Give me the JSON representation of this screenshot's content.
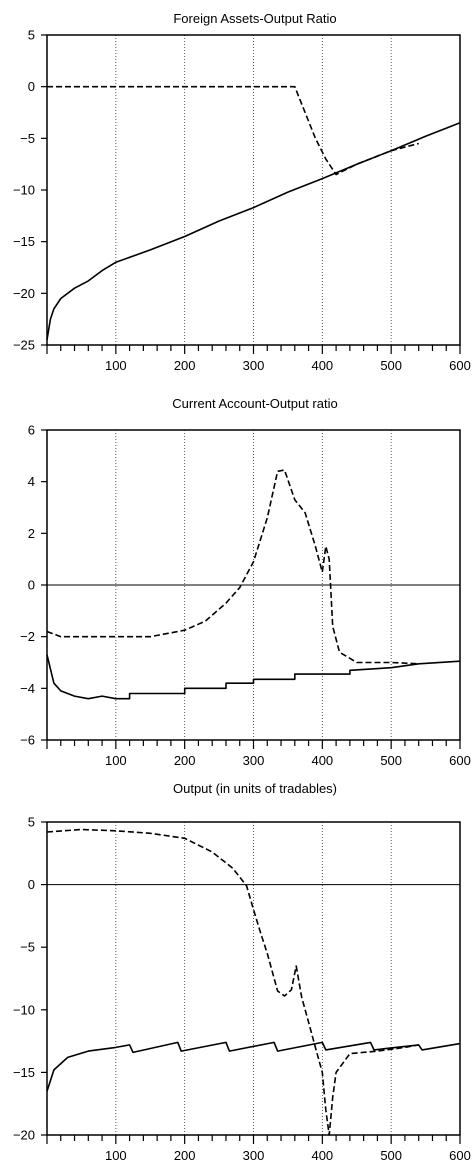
{
  "charts": [
    {
      "type": "line",
      "title": "Foreign Assets-Output Ratio",
      "xlim": [
        0,
        600
      ],
      "ylim": [
        -25,
        5
      ],
      "x_ticks": [
        100,
        200,
        300,
        400,
        500,
        600
      ],
      "y_ticks": [
        5,
        0,
        -5,
        -10,
        -15,
        -20,
        -25
      ],
      "zero_line": false,
      "grid": "vertical dotted lines at x ticks",
      "series": [
        {
          "style": "solid",
          "points": [
            [
              0,
              -24.5
            ],
            [
              5,
              -22.5
            ],
            [
              10,
              -21.5
            ],
            [
              20,
              -20.5
            ],
            [
              40,
              -19.5
            ],
            [
              60,
              -18.8
            ],
            [
              80,
              -17.8
            ],
            [
              100,
              -17.0
            ],
            [
              150,
              -15.8
            ],
            [
              200,
              -14.5
            ],
            [
              250,
              -13.0
            ],
            [
              300,
              -11.7
            ],
            [
              350,
              -10.2
            ],
            [
              400,
              -8.9
            ],
            [
              450,
              -7.5
            ],
            [
              500,
              -6.2
            ],
            [
              550,
              -4.8
            ],
            [
              600,
              -3.5
            ]
          ]
        },
        {
          "style": "dashed",
          "points": [
            [
              0,
              0
            ],
            [
              360,
              0
            ],
            [
              375,
              -2.5
            ],
            [
              390,
              -5
            ],
            [
              405,
              -7
            ],
            [
              420,
              -8.5
            ],
            [
              450,
              -7.5
            ],
            [
              500,
              -6.2
            ],
            [
              540,
              -5.5
            ]
          ]
        }
      ]
    },
    {
      "type": "line",
      "title": "Current Account-Output ratio",
      "xlim": [
        0,
        600
      ],
      "ylim": [
        -6,
        6
      ],
      "x_ticks": [
        100,
        200,
        300,
        400,
        500,
        600
      ],
      "y_ticks": [
        6,
        4,
        2,
        0,
        -2,
        -4,
        -6
      ],
      "zero_line": true,
      "grid": "vertical dotted lines at x ticks",
      "series": [
        {
          "style": "solid",
          "points": [
            [
              0,
              -2.7
            ],
            [
              10,
              -3.8
            ],
            [
              20,
              -4.1
            ],
            [
              40,
              -4.3
            ],
            [
              60,
              -4.4
            ],
            [
              80,
              -4.3
            ],
            [
              100,
              -4.4
            ],
            [
              120,
              -4.4
            ],
            [
              120,
              -4.2
            ],
            [
              200,
              -4.2
            ],
            [
              200,
              -4.0
            ],
            [
              260,
              -4.0
            ],
            [
              260,
              -3.8
            ],
            [
              300,
              -3.8
            ],
            [
              300,
              -3.65
            ],
            [
              360,
              -3.65
            ],
            [
              360,
              -3.45
            ],
            [
              440,
              -3.45
            ],
            [
              440,
              -3.3
            ],
            [
              500,
              -3.2
            ],
            [
              540,
              -3.05
            ],
            [
              600,
              -2.95
            ]
          ]
        },
        {
          "style": "dashed",
          "points": [
            [
              0,
              -1.8
            ],
            [
              20,
              -2.0
            ],
            [
              60,
              -2.0
            ],
            [
              100,
              -2.0
            ],
            [
              150,
              -2.0
            ],
            [
              200,
              -1.75
            ],
            [
              230,
              -1.4
            ],
            [
              260,
              -0.7
            ],
            [
              280,
              -0.1
            ],
            [
              300,
              0.9
            ],
            [
              320,
              2.6
            ],
            [
              335,
              4.4
            ],
            [
              345,
              4.45
            ],
            [
              360,
              3.3
            ],
            [
              375,
              2.8
            ],
            [
              390,
              1.5
            ],
            [
              400,
              0.5
            ],
            [
              405,
              1.5
            ],
            [
              410,
              1.0
            ],
            [
              415,
              -1.6
            ],
            [
              425,
              -2.6
            ],
            [
              450,
              -3.0
            ],
            [
              500,
              -3.0
            ],
            [
              540,
              -3.05
            ]
          ]
        }
      ]
    },
    {
      "type": "line",
      "title": "Output (in units of tradables)",
      "xlim": [
        0,
        600
      ],
      "ylim": [
        -20,
        5
      ],
      "x_ticks": [
        100,
        200,
        300,
        400,
        500,
        600
      ],
      "y_ticks": [
        5,
        0,
        -5,
        -10,
        -15,
        -20
      ],
      "zero_line": true,
      "grid": "vertical dotted lines at x ticks",
      "series": [
        {
          "style": "solid",
          "points": [
            [
              0,
              -16.5
            ],
            [
              10,
              -14.8
            ],
            [
              30,
              -13.8
            ],
            [
              60,
              -13.3
            ],
            [
              100,
              -13.0
            ],
            [
              120,
              -12.8
            ],
            [
              125,
              -13.4
            ],
            [
              190,
              -12.6
            ],
            [
              195,
              -13.3
            ],
            [
              260,
              -12.6
            ],
            [
              265,
              -13.3
            ],
            [
              330,
              -12.6
            ],
            [
              335,
              -13.3
            ],
            [
              400,
              -12.6
            ],
            [
              405,
              -13.2
            ],
            [
              470,
              -12.6
            ],
            [
              475,
              -13.2
            ],
            [
              540,
              -12.8
            ],
            [
              545,
              -13.2
            ],
            [
              600,
              -12.7
            ]
          ]
        },
        {
          "style": "dashed",
          "points": [
            [
              0,
              4.2
            ],
            [
              50,
              4.4
            ],
            [
              100,
              4.3
            ],
            [
              150,
              4.1
            ],
            [
              200,
              3.7
            ],
            [
              240,
              2.6
            ],
            [
              270,
              1.3
            ],
            [
              290,
              -0.1
            ],
            [
              300,
              -2.0
            ],
            [
              310,
              -3.8
            ],
            [
              320,
              -5.5
            ],
            [
              335,
              -8.5
            ],
            [
              345,
              -8.9
            ],
            [
              355,
              -8.4
            ],
            [
              362,
              -6.5
            ],
            [
              370,
              -9
            ],
            [
              380,
              -11
            ],
            [
              390,
              -13
            ],
            [
              400,
              -15
            ],
            [
              405,
              -18
            ],
            [
              410,
              -20
            ],
            [
              415,
              -17
            ],
            [
              420,
              -15
            ],
            [
              440,
              -13.5
            ],
            [
              480,
              -13.3
            ],
            [
              520,
              -13.0
            ],
            [
              540,
              -12.8
            ]
          ]
        }
      ]
    }
  ]
}
